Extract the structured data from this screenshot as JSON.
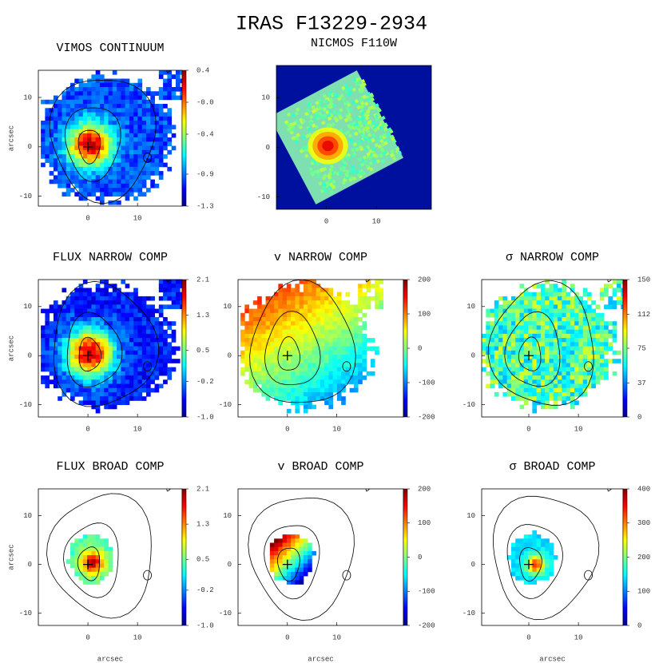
{
  "title": "IRAS F13229-2934",
  "chart_data": [
    {
      "type": "heatmap",
      "title": "VIMOS CONTINUUM",
      "ylabel": "arcsec",
      "xlim": [
        -10,
        19
      ],
      "ylim": [
        -12,
        15.5
      ],
      "xticks": [
        0,
        10
      ],
      "yticks": [
        -10,
        0,
        10
      ],
      "clim": [
        -1.3,
        0.4
      ],
      "cticks": [
        0.4,
        {
          "value": 0,
          "label": "-0.0"
        },
        -0.4,
        -0.9,
        -1.3
      ]
    },
    {
      "type": "heatmap",
      "title": "NICMOS F110W",
      "xlim": [
        -10,
        21
      ],
      "ylim": [
        -12.5,
        16.5
      ],
      "xticks": [
        0,
        10
      ],
      "yticks": [
        -10,
        0,
        10
      ]
    },
    {
      "type": "heatmap",
      "title": "FLUX NARROW COMP",
      "ylabel": "arcsec",
      "xlim": [
        -10,
        19
      ],
      "ylim": [
        -12.5,
        15.5
      ],
      "xticks": [
        0,
        10
      ],
      "yticks": [
        -10,
        0,
        10
      ],
      "clim": [
        -1,
        2.1
      ],
      "cticks": [
        2.1,
        1.3,
        0.5,
        -0.2,
        {
          "value": -1,
          "label": "-1.0"
        }
      ]
    },
    {
      "type": "heatmap",
      "title": "v NARROW COMP",
      "xlim": [
        -10,
        23.5
      ],
      "ylim": [
        -12.5,
        15.5
      ],
      "xticks": [
        0,
        10
      ],
      "yticks": [
        -10,
        0,
        10
      ],
      "clim": [
        -200,
        200
      ],
      "cticks": [
        200,
        100,
        0,
        -100,
        -200
      ]
    },
    {
      "type": "heatmap",
      "title": "σ NARROW COMP",
      "xlim": [
        -9.5,
        19
      ],
      "ylim": [
        -12.5,
        15.5
      ],
      "xticks": [
        0,
        10
      ],
      "yticks": [
        -10,
        0,
        10
      ],
      "clim": [
        0,
        150
      ],
      "cticks": [
        150,
        112,
        75,
        37,
        0
      ]
    },
    {
      "type": "heatmap",
      "title": "FLUX BROAD COMP",
      "xlabel": "arcsec",
      "ylabel": "arcsec",
      "xlim": [
        -10,
        19
      ],
      "ylim": [
        -12.5,
        15.5
      ],
      "xticks": [
        0,
        10
      ],
      "yticks": [
        -10,
        0,
        10
      ],
      "clim": [
        -1,
        2.1
      ],
      "cticks": [
        2.1,
        1.3,
        0.5,
        -0.2,
        {
          "value": -1,
          "label": "-1.0"
        }
      ]
    },
    {
      "type": "heatmap",
      "title": "v BROAD COMP",
      "xlabel": "arcsec",
      "xlim": [
        -10,
        23.5
      ],
      "ylim": [
        -12.5,
        15.5
      ],
      "xticks": [
        0,
        10
      ],
      "yticks": [
        -10,
        0,
        10
      ],
      "clim": [
        -200,
        200
      ],
      "cticks": [
        200,
        100,
        0,
        -100,
        -200
      ]
    },
    {
      "type": "heatmap",
      "title": "σ BROAD COMP",
      "xlabel": "arcsec",
      "xlim": [
        -9.5,
        19
      ],
      "ylim": [
        -12.5,
        15.5
      ],
      "xticks": [
        0,
        10
      ],
      "yticks": [
        -10,
        0,
        10
      ],
      "clim": [
        0,
        400
      ],
      "cticks": [
        400,
        300,
        200,
        100,
        0
      ]
    }
  ]
}
